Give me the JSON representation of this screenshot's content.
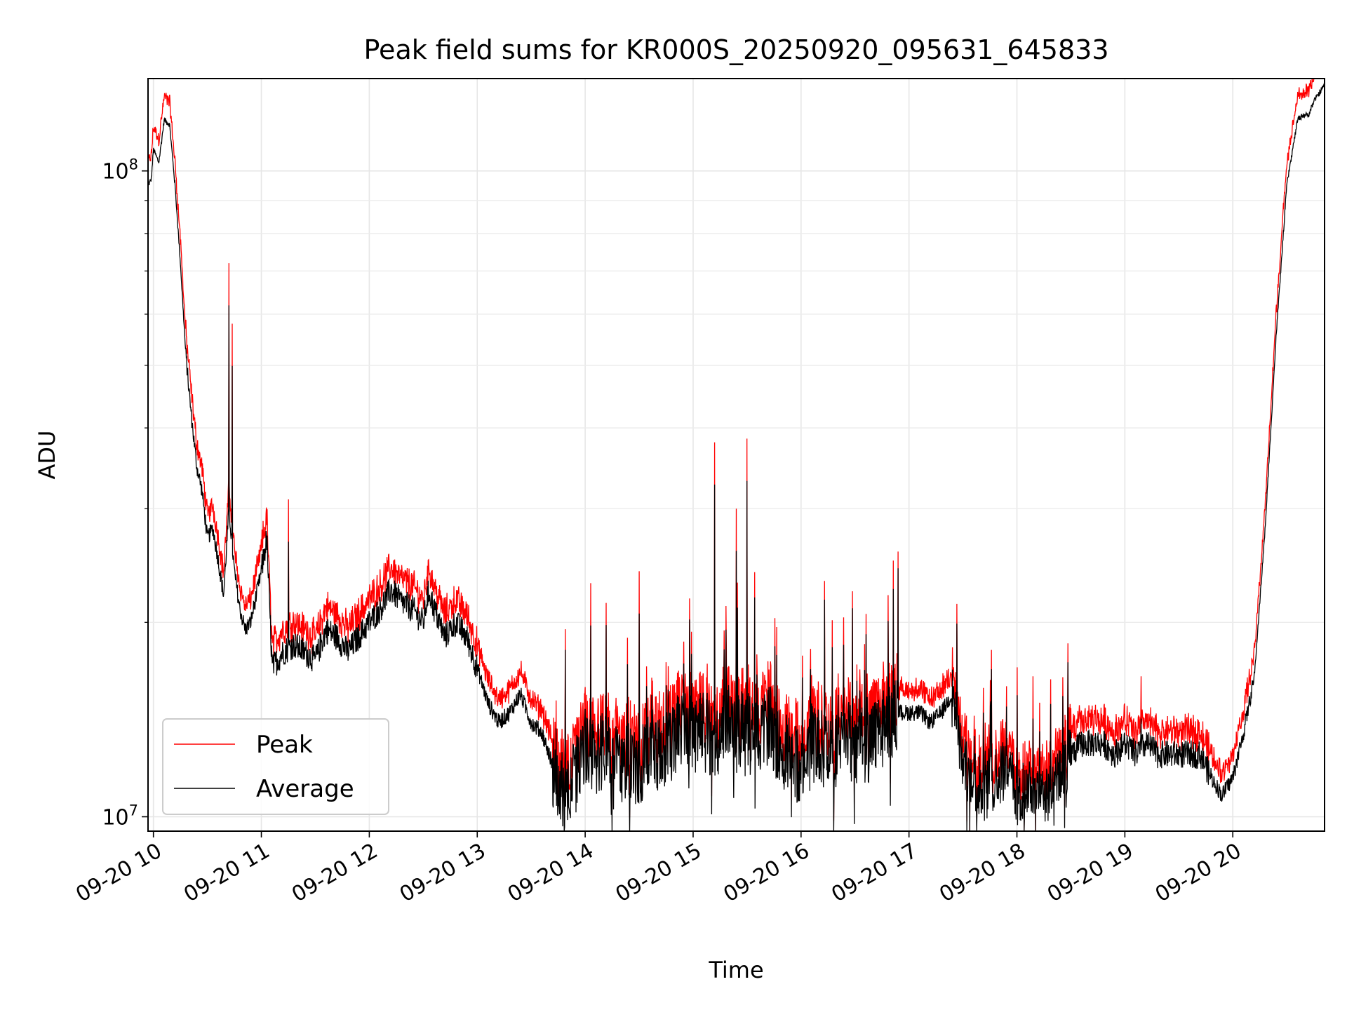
{
  "chart_data": {
    "type": "line",
    "title": "Peak field sums for KR000S_20250920_095631_645833",
    "xlabel": "Time",
    "ylabel": "ADU",
    "x_unit": "hour of 2025-09-20",
    "xlim": [
      9.95,
      20.85
    ],
    "ylim": [
      9500000,
      139000000
    ],
    "yscale": "log",
    "y_major_ticks": [
      {
        "value": 10000000,
        "base": "10",
        "exp": "7"
      },
      {
        "value": 100000000,
        "base": "10",
        "exp": "8"
      }
    ],
    "y_minor_ticks": [
      20000000,
      30000000,
      40000000,
      50000000,
      60000000,
      70000000,
      80000000,
      90000000
    ],
    "x_ticks": [
      {
        "value": 10,
        "label": "09-20 10"
      },
      {
        "value": 11,
        "label": "09-20 11"
      },
      {
        "value": 12,
        "label": "09-20 12"
      },
      {
        "value": 13,
        "label": "09-20 13"
      },
      {
        "value": 14,
        "label": "09-20 14"
      },
      {
        "value": 15,
        "label": "09-20 15"
      },
      {
        "value": 16,
        "label": "09-20 16"
      },
      {
        "value": 17,
        "label": "09-20 17"
      },
      {
        "value": 18,
        "label": "09-20 18"
      },
      {
        "value": 19,
        "label": "09-20 19"
      },
      {
        "value": 20,
        "label": "09-20 20"
      }
    ],
    "grid": true,
    "legend_position": "lower-left",
    "series": [
      {
        "name": "Peak",
        "color": "#ff0000"
      },
      {
        "name": "Average",
        "color": "#000000"
      }
    ],
    "average_points": [
      [
        9.95,
        95000000
      ],
      [
        9.98,
        97000000
      ],
      [
        10.0,
        108000000
      ],
      [
        10.05,
        103000000
      ],
      [
        10.1,
        120000000
      ],
      [
        10.15,
        118000000
      ],
      [
        10.2,
        95000000
      ],
      [
        10.25,
        72000000
      ],
      [
        10.3,
        52000000
      ],
      [
        10.35,
        42000000
      ],
      [
        10.4,
        35000000
      ],
      [
        10.45,
        32000000
      ],
      [
        10.5,
        27000000
      ],
      [
        10.55,
        28000000
      ],
      [
        10.6,
        25000000
      ],
      [
        10.65,
        22000000
      ],
      [
        10.7,
        30000000
      ],
      [
        10.75,
        24000000
      ],
      [
        10.8,
        21000000
      ],
      [
        10.85,
        19500000
      ],
      [
        10.9,
        20000000
      ],
      [
        11.0,
        24000000
      ],
      [
        11.05,
        27000000
      ],
      [
        11.1,
        17000000
      ],
      [
        11.2,
        18000000
      ],
      [
        11.3,
        18500000
      ],
      [
        11.4,
        18000000
      ],
      [
        11.5,
        17500000
      ],
      [
        11.6,
        19500000
      ],
      [
        11.7,
        19000000
      ],
      [
        11.8,
        18000000
      ],
      [
        11.9,
        19000000
      ],
      [
        12.0,
        20000000
      ],
      [
        12.1,
        21000000
      ],
      [
        12.2,
        22500000
      ],
      [
        12.3,
        21500000
      ],
      [
        12.4,
        21000000
      ],
      [
        12.5,
        20000000
      ],
      [
        12.55,
        22500000
      ],
      [
        12.6,
        21000000
      ],
      [
        12.7,
        19000000
      ],
      [
        12.8,
        20000000
      ],
      [
        12.9,
        19000000
      ],
      [
        13.0,
        17000000
      ],
      [
        13.1,
        15000000
      ],
      [
        13.2,
        14000000
      ],
      [
        13.3,
        14500000
      ],
      [
        13.4,
        15500000
      ],
      [
        13.5,
        14000000
      ],
      [
        13.6,
        13500000
      ],
      [
        13.7,
        12000000
      ],
      [
        13.8,
        11000000
      ],
      [
        13.9,
        11500000
      ],
      [
        14.0,
        13000000
      ],
      [
        14.1,
        12500000
      ],
      [
        14.2,
        13000000
      ],
      [
        14.3,
        12000000
      ],
      [
        14.4,
        12500000
      ],
      [
        14.5,
        11500000
      ],
      [
        14.6,
        13000000
      ],
      [
        14.7,
        12500000
      ],
      [
        14.8,
        13000000
      ],
      [
        14.9,
        14000000
      ],
      [
        15.0,
        13500000
      ],
      [
        15.1,
        14000000
      ],
      [
        15.2,
        13000000
      ],
      [
        15.3,
        14500000
      ],
      [
        15.4,
        13500000
      ],
      [
        15.5,
        14000000
      ],
      [
        15.6,
        13500000
      ],
      [
        15.7,
        14000000
      ],
      [
        15.8,
        13000000
      ],
      [
        15.9,
        12500000
      ],
      [
        16.0,
        12000000
      ],
      [
        16.1,
        13500000
      ],
      [
        16.2,
        13000000
      ],
      [
        16.3,
        12500000
      ],
      [
        16.4,
        13500000
      ],
      [
        16.5,
        13000000
      ],
      [
        16.6,
        13000000
      ],
      [
        16.7,
        13500000
      ],
      [
        16.8,
        14000000
      ],
      [
        16.9,
        14500000
      ],
      [
        17.0,
        14500000
      ],
      [
        17.1,
        14500000
      ],
      [
        17.2,
        14000000
      ],
      [
        17.3,
        14500000
      ],
      [
        17.4,
        15500000
      ],
      [
        17.5,
        12000000
      ],
      [
        17.6,
        11500000
      ],
      [
        17.7,
        11000000
      ],
      [
        17.8,
        11500000
      ],
      [
        17.9,
        12000000
      ],
      [
        18.0,
        11000000
      ],
      [
        18.1,
        11000000
      ],
      [
        18.2,
        11000000
      ],
      [
        18.3,
        11000000
      ],
      [
        18.4,
        11500000
      ],
      [
        18.5,
        12500000
      ],
      [
        18.6,
        13000000
      ],
      [
        18.7,
        13000000
      ],
      [
        18.8,
        13000000
      ],
      [
        18.9,
        12500000
      ],
      [
        19.0,
        13000000
      ],
      [
        19.1,
        12500000
      ],
      [
        19.2,
        13000000
      ],
      [
        19.3,
        12500000
      ],
      [
        19.4,
        12500000
      ],
      [
        19.5,
        12500000
      ],
      [
        19.6,
        12500000
      ],
      [
        19.7,
        12500000
      ],
      [
        19.8,
        11500000
      ],
      [
        19.9,
        10800000
      ],
      [
        20.0,
        11500000
      ],
      [
        20.1,
        13500000
      ],
      [
        20.2,
        16500000
      ],
      [
        20.3,
        28000000
      ],
      [
        20.4,
        55000000
      ],
      [
        20.5,
        95000000
      ],
      [
        20.6,
        120000000
      ],
      [
        20.65,
        122000000
      ],
      [
        20.7,
        122000000
      ],
      [
        20.75,
        128000000
      ],
      [
        20.8,
        132000000
      ],
      [
        20.85,
        136000000
      ]
    ],
    "peak_spikes": [
      [
        10.7,
        72000000
      ],
      [
        10.73,
        58000000
      ],
      [
        11.25,
        31000000
      ],
      [
        12.55,
        25000000
      ],
      [
        14.05,
        23000000
      ],
      [
        14.5,
        24000000
      ],
      [
        15.2,
        38000000
      ],
      [
        15.4,
        30000000
      ],
      [
        15.5,
        38500000
      ],
      [
        17.4,
        16000000
      ],
      [
        18.15,
        16500000
      ],
      [
        19.15,
        16500000
      ]
    ],
    "peak_to_average_ratio": 1.06
  }
}
